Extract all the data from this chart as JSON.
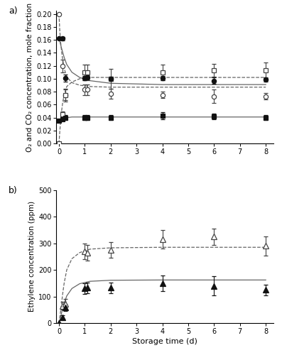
{
  "panel_a": {
    "ylabel": "O₂ and CO₂ concentration, mole fraction",
    "ylim": [
      0.0,
      0.205
    ],
    "xlim": [
      -0.1,
      8.3
    ],
    "yticks": [
      0.0,
      0.02,
      0.04,
      0.06,
      0.08,
      0.1,
      0.12,
      0.14,
      0.16,
      0.18,
      0.2
    ],
    "xticks": [
      0,
      1,
      2,
      3,
      4,
      5,
      6,
      7,
      8
    ],
    "PP_O2_x": [
      0,
      0.13,
      0.25,
      1.0,
      1.1,
      2.0,
      4.0,
      6.0,
      8.0
    ],
    "PP_O2_y": [
      0.2,
      0.12,
      0.075,
      0.083,
      0.083,
      0.077,
      0.075,
      0.073,
      0.073
    ],
    "PP_O2_yerr": [
      0,
      0.01,
      0.008,
      0.008,
      0.008,
      0.008,
      0.005,
      0.01,
      0.005
    ],
    "PP_CO2_x": [
      0,
      0.13,
      0.25,
      1.0,
      1.1,
      2.0,
      4.0,
      6.0,
      8.0
    ],
    "PP_CO2_y": [
      0.0,
      0.045,
      0.075,
      0.11,
      0.11,
      0.1,
      0.11,
      0.113,
      0.113
    ],
    "PP_CO2_yerr": [
      0,
      0.005,
      0.01,
      0.012,
      0.012,
      0.015,
      0.012,
      0.01,
      0.012
    ],
    "LDPE_O2_x": [
      0,
      0.13,
      0.25,
      1.0,
      1.1,
      2.0,
      4.0,
      6.0,
      8.0
    ],
    "LDPE_O2_y": [
      0.162,
      0.162,
      0.101,
      0.101,
      0.102,
      0.1,
      0.101,
      0.097,
      0.099
    ],
    "LDPE_O2_yerr": [
      0,
      0.003,
      0.005,
      0.003,
      0.003,
      0.003,
      0.003,
      0.005,
      0.003
    ],
    "LDPE_CO2_x": [
      0,
      0.13,
      0.25,
      1.0,
      1.1,
      2.0,
      4.0,
      6.0,
      8.0
    ],
    "LDPE_CO2_y": [
      0.035,
      0.038,
      0.04,
      0.04,
      0.04,
      0.04,
      0.043,
      0.042,
      0.04
    ],
    "LDPE_CO2_yerr": [
      0,
      0.003,
      0.004,
      0.004,
      0.004,
      0.004,
      0.005,
      0.004,
      0.004
    ],
    "model_PP_O2_x": [
      0,
      0.03,
      0.06,
      0.1,
      0.15,
      0.2,
      0.3,
      0.5,
      0.8,
      1.2,
      2.0,
      4.0,
      6.0,
      8.0
    ],
    "model_PP_O2_y": [
      0.2,
      0.175,
      0.158,
      0.142,
      0.128,
      0.116,
      0.103,
      0.094,
      0.09,
      0.088,
      0.087,
      0.087,
      0.087,
      0.087
    ],
    "model_PP_CO2_x": [
      0,
      0.03,
      0.06,
      0.1,
      0.15,
      0.2,
      0.3,
      0.5,
      0.8,
      1.2,
      2.0,
      4.0,
      6.0,
      8.0
    ],
    "model_PP_CO2_y": [
      0.0,
      0.018,
      0.033,
      0.05,
      0.065,
      0.075,
      0.088,
      0.095,
      0.1,
      0.102,
      0.102,
      0.102,
      0.102,
      0.102
    ],
    "model_LDPE_O2_x": [
      0,
      0.03,
      0.06,
      0.1,
      0.15,
      0.2,
      0.3,
      0.5,
      0.8,
      1.2,
      2.0,
      4.0,
      6.0,
      8.0
    ],
    "model_LDPE_O2_y": [
      0.162,
      0.158,
      0.153,
      0.147,
      0.14,
      0.133,
      0.122,
      0.11,
      0.102,
      0.097,
      0.093,
      0.091,
      0.091,
      0.091
    ],
    "model_LDPE_CO2_x": [
      0,
      0.03,
      0.06,
      0.1,
      0.15,
      0.2,
      0.3,
      0.5,
      0.8,
      1.2,
      2.0,
      4.0,
      6.0,
      8.0
    ],
    "model_LDPE_CO2_y": [
      0.035,
      0.036,
      0.037,
      0.038,
      0.039,
      0.039,
      0.04,
      0.041,
      0.041,
      0.041,
      0.041,
      0.041,
      0.041,
      0.041
    ]
  },
  "panel_b": {
    "xlabel": "Storage time (d)",
    "ylabel": "Ethylene concentration (ppm)",
    "ylim": [
      0,
      500
    ],
    "xlim": [
      -0.1,
      8.3
    ],
    "yticks": [
      0,
      100,
      200,
      300,
      400,
      500
    ],
    "xticks": [
      0,
      1,
      2,
      3,
      4,
      5,
      6,
      7,
      8
    ],
    "PP_C2H4_x": [
      0,
      0.13,
      0.25,
      1.0,
      1.1,
      2.0,
      4.0,
      6.0,
      8.0
    ],
    "PP_C2H4_y": [
      0,
      65,
      72,
      270,
      265,
      275,
      315,
      325,
      290
    ],
    "PP_C2H4_yerr": [
      0,
      15,
      20,
      30,
      30,
      30,
      35,
      30,
      35
    ],
    "LDPE_C2H4_x": [
      0,
      0.13,
      0.25,
      1.0,
      1.1,
      2.0,
      4.0,
      6.0,
      8.0
    ],
    "LDPE_C2H4_y": [
      0,
      22,
      58,
      130,
      133,
      133,
      150,
      140,
      125
    ],
    "LDPE_C2H4_yerr": [
      0,
      8,
      12,
      20,
      20,
      20,
      30,
      35,
      20
    ],
    "model_PP_C2H4_x": [
      0,
      0.03,
      0.06,
      0.1,
      0.15,
      0.2,
      0.3,
      0.5,
      0.8,
      1.2,
      2.0,
      4.0,
      6.0,
      8.0
    ],
    "model_PP_C2H4_y": [
      0,
      20,
      42,
      75,
      115,
      150,
      200,
      242,
      265,
      278,
      283,
      285,
      285,
      285
    ],
    "model_LDPE_C2H4_x": [
      0,
      0.03,
      0.06,
      0.1,
      0.15,
      0.2,
      0.3,
      0.5,
      0.8,
      1.2,
      2.0,
      4.0,
      6.0,
      8.0
    ],
    "model_LDPE_C2H4_y": [
      0,
      10,
      20,
      38,
      58,
      75,
      102,
      130,
      148,
      157,
      161,
      162,
      162,
      162
    ]
  },
  "line_color": "#666666",
  "open_color": "#444444",
  "fill_color": "#111111"
}
